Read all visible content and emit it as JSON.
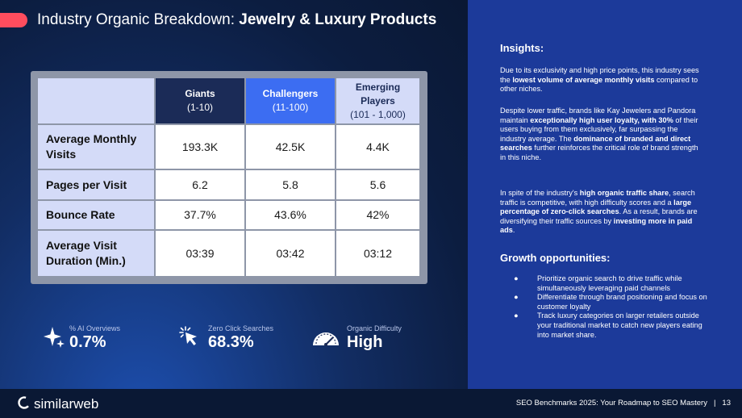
{
  "header": {
    "title_prefix": "Industry Organic Breakdown: ",
    "title_bold": "Jewelry & Luxury Products"
  },
  "table": {
    "columns": [
      {
        "name": "Giants",
        "range": "(1-10)"
      },
      {
        "name": "Challengers",
        "range": "(11-100)"
      },
      {
        "name": "Emerging Players",
        "range": "(101 - 1,000)"
      }
    ],
    "rows": [
      {
        "label": "Average Monthly Visits",
        "values": [
          "193.3K",
          "42.5K",
          "4.4K"
        ]
      },
      {
        "label": "Pages per Visit",
        "values": [
          "6.2",
          "5.8",
          "5.6"
        ]
      },
      {
        "label": "Bounce Rate",
        "values": [
          "37.7%",
          "43.6%",
          "42%"
        ]
      },
      {
        "label": "Average Visit Duration (Min.)",
        "values": [
          "03:39",
          "03:42",
          "03:12"
        ]
      }
    ]
  },
  "stats": [
    {
      "label": "% AI Overviews",
      "value": "0.7%",
      "icon": "sparkle-icon"
    },
    {
      "label": "Zero Click Searches",
      "value": "68.3%",
      "icon": "cursor-click-icon"
    },
    {
      "label": "Organic Difficulty",
      "value": "High",
      "icon": "gauge-icon"
    }
  ],
  "insights": {
    "heading": "Insights:",
    "p1": {
      "a": "Due to its exclusivity and high price points, this industry sees the ",
      "b": "lowest volume of average monthly visits",
      "c": " compared to other niches."
    },
    "p2": {
      "a": "Despite lower traffic, brands like Kay Jewelers and Pandora maintain ",
      "b": "exceptionally high user loyalty, with 30%",
      "c": " of their users buying from them exclusively, far surpassing the industry average. The ",
      "d": "dominance of branded and direct searches",
      "e": " further reinforces the critical role of brand strength in this niche."
    },
    "p3": {
      "a": "In spite of the industry's ",
      "b": "high organic traffic share",
      "c": ", search traffic is competitive, with high difficulty scores and a ",
      "d": "large percentage of zero-click searches",
      "e": ". As a result, brands are diversifying their traffic sources by ",
      "f": "investing more in paid ads",
      "g": "."
    }
  },
  "growth": {
    "heading": "Growth opportunities:",
    "bullet": "●",
    "items": [
      "Prioritize organic search to drive traffic while simultaneously leveraging paid channels",
      "Differentiate through brand positioning and focus on customer loyalty",
      "Track luxury categories on larger retailers outside your traditional market to catch new players eating into market share."
    ]
  },
  "footer": {
    "brand": "similarweb",
    "caption": "SEO Benchmarks 2025: Your Roadmap to SEO Mastery",
    "separator": "|",
    "page": "13"
  },
  "colors": {
    "accent": "#ff4d5e",
    "giants_header": "#1b2b57",
    "challengers_header": "#3c6df2",
    "light_header": "#d4dbf8",
    "right_panel": "#1c3a9a"
  }
}
